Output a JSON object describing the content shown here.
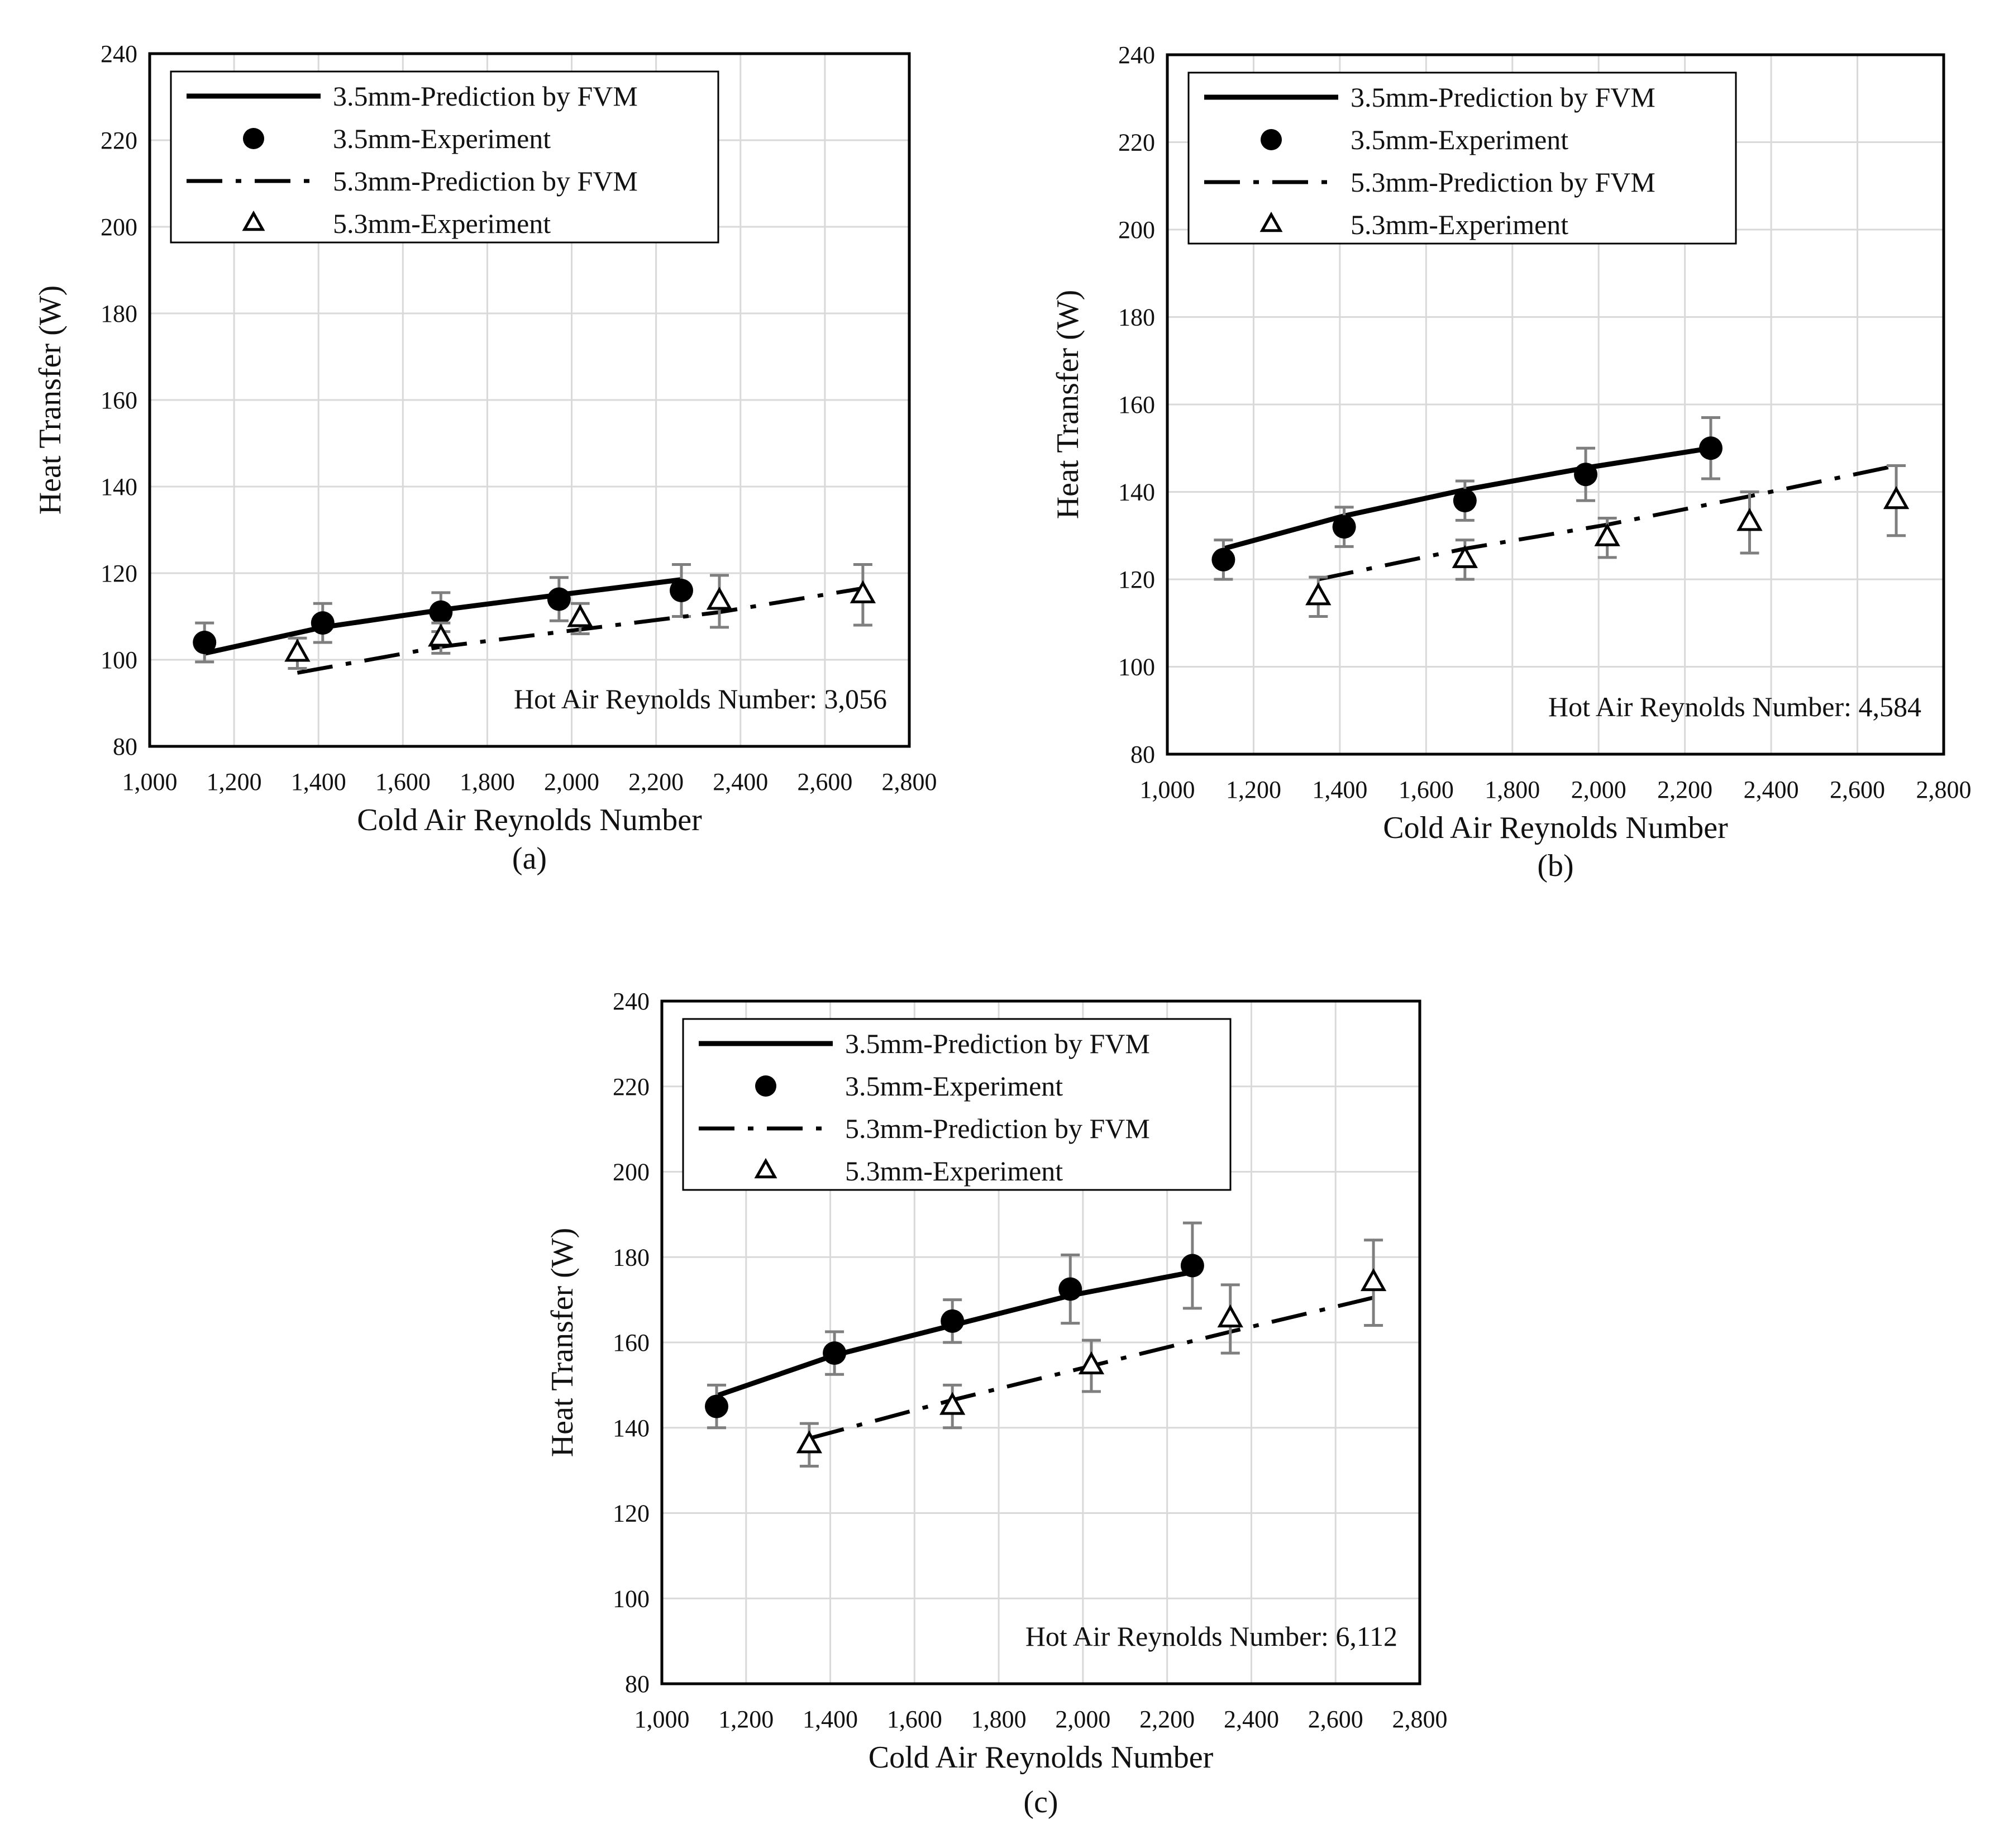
{
  "chart_data": [
    {
      "panel": "(a)",
      "type": "line",
      "xlabel": "Cold Air Reynolds Number",
      "ylabel": "Heat Transfer (W)",
      "xlim": [
        1000,
        2800
      ],
      "ylim": [
        80,
        240
      ],
      "x_ticks": [
        "1,000",
        "1,200",
        "1,400",
        "1,600",
        "1,800",
        "2,000",
        "2,200",
        "2,400",
        "2,600",
        "2,800"
      ],
      "y_ticks": [
        "80",
        "100",
        "120",
        "140",
        "160",
        "180",
        "200",
        "220",
        "240"
      ],
      "grid": true,
      "legend": [
        "3.5mm-Prediction by FVM",
        "3.5mm-Experiment",
        "5.3mm-Prediction by FVM",
        "5.3mm-Experiment"
      ],
      "legend_position": "top-left",
      "annotation": "Hot Air Reynolds Number: 3,056",
      "series": [
        {
          "name": "3.5mm-Prediction by FVM",
          "kind": "line-solid",
          "x": [
            1130,
            1410,
            1690,
            1970,
            2260
          ],
          "y": [
            101.5,
            107.5,
            111.5,
            115,
            118.5
          ]
        },
        {
          "name": "3.5mm-Experiment",
          "kind": "marker-circle",
          "x": [
            1130,
            1410,
            1690,
            1970,
            2260
          ],
          "y": [
            104,
            108.5,
            111,
            114,
            116
          ],
          "err": [
            4.5,
            4.5,
            4.5,
            5,
            6
          ]
        },
        {
          "name": "5.3mm-Prediction by FVM",
          "kind": "line-dashdot",
          "x": [
            1350,
            1690,
            2020,
            2350,
            2690
          ],
          "y": [
            97,
            103,
            107,
            111,
            116.5
          ]
        },
        {
          "name": "5.3mm-Experiment",
          "kind": "marker-triangle",
          "x": [
            1350,
            1690,
            2020,
            2350,
            2690
          ],
          "y": [
            101.5,
            105,
            109.5,
            113.5,
            115
          ],
          "err": [
            3.5,
            3.5,
            3.5,
            6,
            7
          ]
        }
      ]
    },
    {
      "panel": "(b)",
      "type": "line",
      "xlabel": "Cold Air Reynolds Number",
      "ylabel": "Heat Transfer (W)",
      "xlim": [
        1000,
        2800
      ],
      "ylim": [
        80,
        240
      ],
      "x_ticks": [
        "1,000",
        "1,200",
        "1,400",
        "1,600",
        "1,800",
        "2,000",
        "2,200",
        "2,400",
        "2,600",
        "2,800"
      ],
      "y_ticks": [
        "80",
        "100",
        "120",
        "140",
        "160",
        "180",
        "200",
        "220",
        "240"
      ],
      "grid": true,
      "legend": [
        "3.5mm-Prediction by FVM",
        "3.5mm-Experiment",
        "5.3mm-Prediction by FVM",
        "5.3mm-Experiment"
      ],
      "legend_position": "top-left",
      "annotation": "Hot Air Reynolds Number: 4,584",
      "series": [
        {
          "name": "3.5mm-Prediction by FVM",
          "kind": "line-solid",
          "x": [
            1130,
            1410,
            1690,
            1970,
            2260
          ],
          "y": [
            127,
            134.5,
            140.5,
            145.5,
            150
          ]
        },
        {
          "name": "3.5mm-Experiment",
          "kind": "marker-circle",
          "x": [
            1130,
            1410,
            1690,
            1970,
            2260
          ],
          "y": [
            124.5,
            132,
            138,
            144,
            150
          ],
          "err": [
            4.5,
            4.5,
            4.5,
            6,
            7
          ]
        },
        {
          "name": "5.3mm-Prediction by FVM",
          "kind": "line-dashdot",
          "x": [
            1350,
            1690,
            2020,
            2350,
            2690
          ],
          "y": [
            120,
            127,
            132.5,
            139,
            146
          ]
        },
        {
          "name": "5.3mm-Experiment",
          "kind": "marker-triangle",
          "x": [
            1350,
            1690,
            2020,
            2350,
            2690
          ],
          "y": [
            116,
            124.5,
            129.5,
            133,
            138
          ],
          "err": [
            4.5,
            4.5,
            4.5,
            7,
            8
          ]
        }
      ]
    },
    {
      "panel": "(c)",
      "type": "line",
      "xlabel": "Cold Air Reynolds Number",
      "ylabel": "Heat Transfer (W)",
      "xlim": [
        1000,
        2800
      ],
      "ylim": [
        80,
        240
      ],
      "x_ticks": [
        "1,000",
        "1,200",
        "1,400",
        "1,600",
        "1,800",
        "2,000",
        "2,200",
        "2,400",
        "2,600",
        "2,800"
      ],
      "y_ticks": [
        "80",
        "100",
        "120",
        "140",
        "160",
        "180",
        "200",
        "220",
        "240"
      ],
      "grid": true,
      "legend": [
        "3.5mm-Prediction by FVM",
        "3.5mm-Experiment",
        "5.3mm-Prediction by FVM",
        "5.3mm-Experiment"
      ],
      "legend_position": "top-left",
      "annotation": "Hot Air Reynolds Number: 6,112",
      "series": [
        {
          "name": "3.5mm-Prediction by FVM",
          "kind": "line-solid",
          "x": [
            1130,
            1410,
            1690,
            1970,
            2260
          ],
          "y": [
            147.5,
            157,
            164,
            171,
            176.5
          ]
        },
        {
          "name": "3.5mm-Experiment",
          "kind": "marker-circle",
          "x": [
            1130,
            1410,
            1690,
            1970,
            2260
          ],
          "y": [
            145,
            157.5,
            165,
            172.5,
            178
          ],
          "err": [
            5,
            5,
            5,
            8,
            10
          ]
        },
        {
          "name": "5.3mm-Prediction by FVM",
          "kind": "line-dashdot",
          "x": [
            1350,
            1690,
            2020,
            2350,
            2690
          ],
          "y": [
            137.5,
            146.5,
            154.5,
            162.5,
            170.5
          ]
        },
        {
          "name": "5.3mm-Experiment",
          "kind": "marker-triangle",
          "x": [
            1350,
            1690,
            2020,
            2350,
            2690
          ],
          "y": [
            136,
            145,
            154.5,
            165.5,
            174
          ],
          "err": [
            5,
            5,
            6,
            8,
            10
          ]
        }
      ]
    }
  ]
}
